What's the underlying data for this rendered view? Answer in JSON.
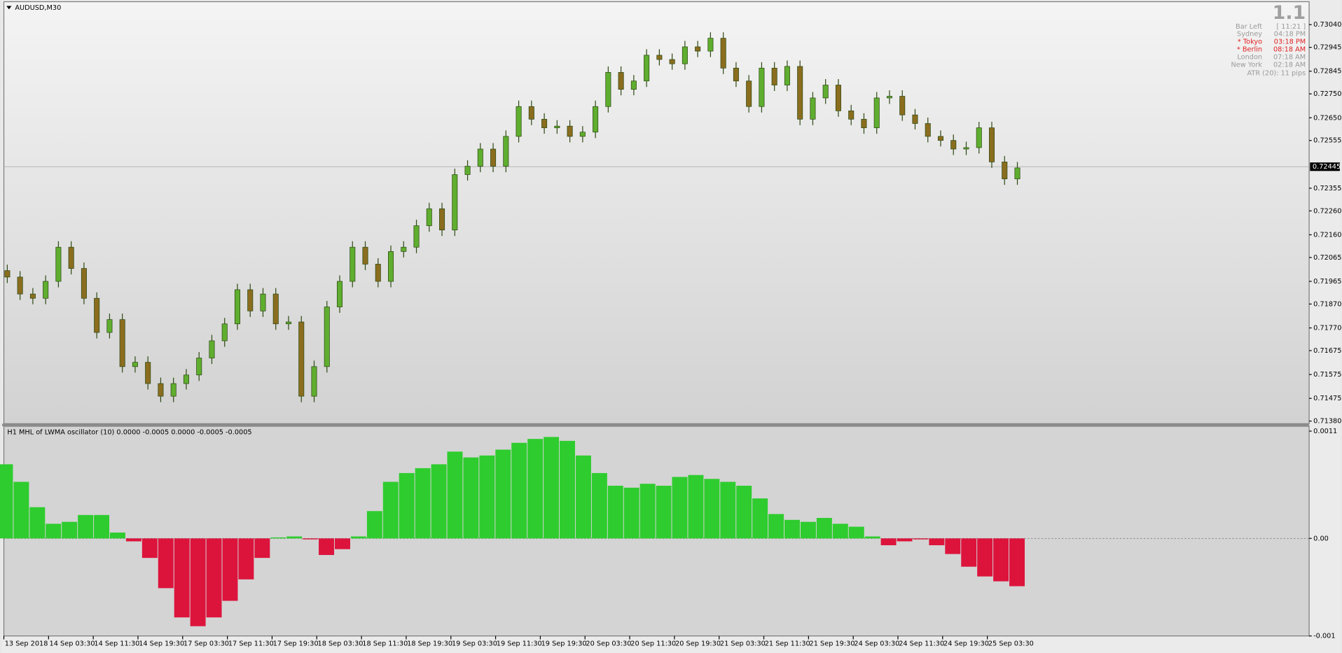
{
  "chart_data": [
    {
      "type": "candlestick",
      "title": "AUDUSD,M30",
      "ylim": [
        0.71369,
        0.73136
      ],
      "yticks": [
        {
          "value": 0.7304,
          "label": "0.73040"
        },
        {
          "value": 0.72945,
          "label": "0.72945"
        },
        {
          "value": 0.72845,
          "label": "0.72845"
        },
        {
          "value": 0.7275,
          "label": "0.72750"
        },
        {
          "value": 0.7265,
          "label": "0.72650"
        },
        {
          "value": 0.72555,
          "label": "0.72555"
        },
        {
          "value": 0.72355,
          "label": "0.72355"
        },
        {
          "value": 0.7226,
          "label": "0.72260"
        },
        {
          "value": 0.7216,
          "label": "0.72160"
        },
        {
          "value": 0.72065,
          "label": "0.72065"
        },
        {
          "value": 0.71965,
          "label": "0.71965"
        },
        {
          "value": 0.7187,
          "label": "0.71870"
        },
        {
          "value": 0.7177,
          "label": "0.71770"
        },
        {
          "value": 0.71675,
          "label": "0.71675"
        },
        {
          "value": 0.71575,
          "label": "0.71575"
        },
        {
          "value": 0.71475,
          "label": "0.71475"
        },
        {
          "value": 0.7138,
          "label": "0.71380"
        }
      ],
      "current_price": {
        "value": 0.72445,
        "label": "0.72445"
      },
      "bull_color": "#5fae2f",
      "bear_color": "#8a6d1e",
      "wick_color": "#2f4a14",
      "open": [
        0.7201,
        0.71983,
        0.71912,
        0.71894,
        0.71965,
        0.72108,
        0.72019,
        0.71894,
        0.71751,
        0.71805,
        0.71608,
        0.71626,
        0.71537,
        0.71484,
        0.71537,
        0.71573,
        0.71644,
        0.71716,
        0.71787,
        0.7193,
        0.71841,
        0.71912,
        0.71787,
        0.71795,
        0.71484,
        0.71608,
        0.71858,
        0.71965,
        0.72108,
        0.72037,
        0.71965,
        0.7209,
        0.72108,
        0.72198,
        0.72269,
        0.7218,
        0.72412,
        0.72447,
        0.72519,
        0.72447,
        0.72572,
        0.72697,
        0.72644,
        0.72608,
        0.72615,
        0.72572,
        0.7259,
        0.72697,
        0.7284,
        0.72769,
        0.72804,
        0.72912,
        0.72894,
        0.72876,
        0.72947,
        0.72929,
        0.72983,
        0.72858,
        0.72804,
        0.72697,
        0.72858,
        0.72787,
        0.72865,
        0.72644,
        0.72733,
        0.72787,
        0.72679,
        0.72644,
        0.72608,
        0.72733,
        0.7274,
        0.72662,
        0.72626,
        0.72572,
        0.72555,
        0.72519,
        0.72525,
        0.72608,
        0.72465,
        0.72394
      ],
      "high": [
        0.72035,
        0.72008,
        0.71937,
        0.7199,
        0.72133,
        0.72133,
        0.72044,
        0.71919,
        0.7183,
        0.7183,
        0.71651,
        0.71651,
        0.71562,
        0.71562,
        0.71598,
        0.71669,
        0.71741,
        0.71812,
        0.71955,
        0.71955,
        0.71937,
        0.71937,
        0.7182,
        0.7182,
        0.71633,
        0.71883,
        0.7199,
        0.72133,
        0.72133,
        0.72062,
        0.72115,
        0.72133,
        0.72223,
        0.72294,
        0.72294,
        0.72437,
        0.72472,
        0.72544,
        0.72544,
        0.72597,
        0.72722,
        0.72722,
        0.72669,
        0.7264,
        0.7264,
        0.72615,
        0.72722,
        0.72865,
        0.72865,
        0.72829,
        0.72937,
        0.72937,
        0.72919,
        0.72972,
        0.72972,
        0.73008,
        0.73008,
        0.72883,
        0.72829,
        0.72883,
        0.72883,
        0.7289,
        0.7289,
        0.72758,
        0.72812,
        0.72812,
        0.72704,
        0.72669,
        0.72758,
        0.72765,
        0.72765,
        0.72687,
        0.72651,
        0.72597,
        0.7258,
        0.7255,
        0.72633,
        0.72633,
        0.7249,
        0.72465
      ],
      "low": [
        0.71958,
        0.71887,
        0.71869,
        0.71869,
        0.7194,
        0.71994,
        0.71869,
        0.71726,
        0.71726,
        0.71583,
        0.71583,
        0.71512,
        0.71459,
        0.71459,
        0.71512,
        0.71548,
        0.71619,
        0.71691,
        0.71762,
        0.71816,
        0.71816,
        0.71762,
        0.71762,
        0.71459,
        0.71459,
        0.71583,
        0.71833,
        0.7194,
        0.72012,
        0.7194,
        0.7194,
        0.72065,
        0.72083,
        0.72173,
        0.72155,
        0.72155,
        0.72387,
        0.72422,
        0.72422,
        0.72422,
        0.72547,
        0.72619,
        0.72583,
        0.72583,
        0.72547,
        0.72547,
        0.72565,
        0.72672,
        0.72744,
        0.72744,
        0.72779,
        0.72869,
        0.72851,
        0.72851,
        0.72904,
        0.72904,
        0.72833,
        0.72779,
        0.72672,
        0.72672,
        0.72762,
        0.72762,
        0.72619,
        0.72619,
        0.72708,
        0.72654,
        0.72619,
        0.72583,
        0.72583,
        0.72708,
        0.72637,
        0.72601,
        0.72547,
        0.7253,
        0.72494,
        0.72494,
        0.725,
        0.7244,
        0.72369,
        0.72369
      ],
      "close": [
        0.71983,
        0.71912,
        0.71894,
        0.71965,
        0.72108,
        0.72019,
        0.71894,
        0.71751,
        0.71805,
        0.71608,
        0.71626,
        0.71537,
        0.71484,
        0.71537,
        0.71573,
        0.71644,
        0.71716,
        0.71787,
        0.7193,
        0.71841,
        0.71912,
        0.71787,
        0.71795,
        0.71484,
        0.71608,
        0.71858,
        0.71965,
        0.72108,
        0.72037,
        0.71965,
        0.7209,
        0.72108,
        0.72198,
        0.72269,
        0.7218,
        0.72412,
        0.72447,
        0.72519,
        0.72447,
        0.72572,
        0.72697,
        0.72644,
        0.72608,
        0.72615,
        0.72572,
        0.7259,
        0.72697,
        0.7284,
        0.72769,
        0.72804,
        0.72912,
        0.72894,
        0.72876,
        0.72947,
        0.72929,
        0.72983,
        0.72858,
        0.72804,
        0.72697,
        0.72858,
        0.72787,
        0.72865,
        0.72644,
        0.72733,
        0.72787,
        0.72679,
        0.72644,
        0.72608,
        0.72733,
        0.7274,
        0.72662,
        0.72626,
        0.72572,
        0.72555,
        0.72519,
        0.72525,
        0.72608,
        0.72465,
        0.72394,
        0.7244
      ]
    },
    {
      "type": "histogram",
      "title": "H1 MHL of LWMA oscillator (10) 0.0000 -0.0005 0.0000 -0.0005 -0.0005",
      "ylim": [
        -0.001,
        0.00115
      ],
      "yticks": [
        0.0011,
        {
          "value": 0,
          "label": "0.00"
        },
        -0.001
      ],
      "positive_color": "#2ecc2e",
      "negative_color": "#dc143c",
      "values": [
        0.00076,
        0.00058,
        0.00032,
        0.00015,
        0.00017,
        0.00024,
        0.00024,
        6e-05,
        -3e-05,
        -0.0002,
        -0.00051,
        -0.00081,
        -0.0009,
        -0.00081,
        -0.00064,
        -0.00042,
        -0.0002,
        1e-05,
        2e-05,
        -1e-05,
        -0.00017,
        -0.00011,
        2e-05,
        0.00028,
        0.00058,
        0.00067,
        0.00072,
        0.00076,
        0.00089,
        0.00083,
        0.00085,
        0.00091,
        0.00098,
        0.00102,
        0.00104,
        0.001,
        0.00085,
        0.00067,
        0.00054,
        0.00052,
        0.00056,
        0.00054,
        0.00063,
        0.00065,
        0.00061,
        0.00058,
        0.00054,
        0.00041,
        0.00025,
        0.00019,
        0.00017,
        0.00021,
        0.00015,
        0.00012,
        2e-05,
        -7e-05,
        -3e-05,
        -1e-05,
        -7e-05,
        -0.00016,
        -0.00029,
        -0.00039,
        -0.00044,
        -0.00049
      ],
      "x_labels": [
        "13 Sep 2018",
        "14 Sep 03:30",
        "14 Sep 11:30",
        "14 Sep 19:30",
        "17 Sep 03:30",
        "17 Sep 11:30",
        "17 Sep 19:30",
        "18 Sep 03:30",
        "18 Sep 11:30",
        "18 Sep 19:30",
        "19 Sep 03:30",
        "19 Sep 11:30",
        "19 Sep 19:30",
        "20 Sep 03:30",
        "20 Sep 11:30",
        "20 Sep 19:30",
        "21 Sep 03:30",
        "21 Sep 11:30",
        "21 Sep 19:30",
        "24 Sep 03:30",
        "24 Sep 11:30",
        "24 Sep 19:30",
        "25 Sep 03:30"
      ]
    }
  ],
  "info_panel": {
    "big_number": "1.1",
    "rows": [
      {
        "label": "Bar Left",
        "value": "[ 11:21 ]",
        "color": "#9a9a9a"
      },
      {
        "label": "Sydney",
        "value": "04:18 PM",
        "color": "#9a9a9a"
      },
      {
        "label": "* Tokyo",
        "value": "03:18 PM",
        "color": "#e02020"
      },
      {
        "label": "* Berlin",
        "value": "08:18 AM",
        "color": "#e02020"
      },
      {
        "label": "London",
        "value": "07:18 AM",
        "color": "#9a9a9a"
      },
      {
        "label": "New York",
        "value": "02:18 AM",
        "color": "#9a9a9a"
      }
    ],
    "atr": "ATR (20): 11 pips"
  }
}
